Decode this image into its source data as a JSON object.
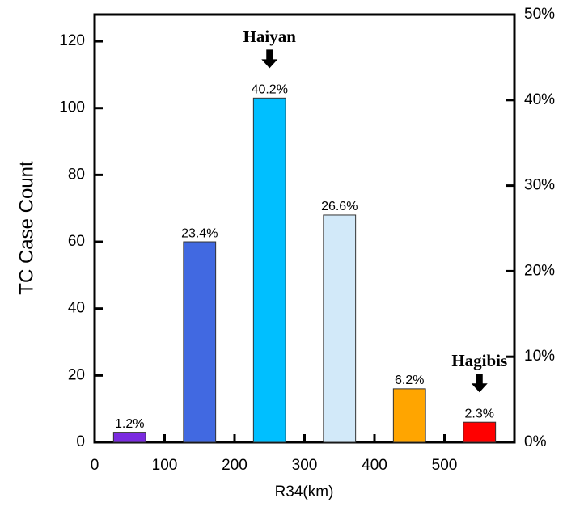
{
  "chart_data": {
    "type": "bar",
    "x": [
      50,
      150,
      250,
      350,
      450,
      550
    ],
    "values": [
      3,
      60,
      103,
      68,
      16,
      6
    ],
    "percent_labels": [
      "1.2%",
      "23.4%",
      "40.2%",
      "26.6%",
      "6.2%",
      "2.3%"
    ],
    "colors": [
      "#7b2be0",
      "#4169e1",
      "#00bfff",
      "#d2e9f9",
      "#ffa500",
      "#ff0000"
    ],
    "xlabel": "R34(km)",
    "ylabel": "TC Case Count",
    "xlim": [
      0,
      600
    ],
    "xticks": [
      0,
      100,
      200,
      300,
      400,
      500
    ],
    "ylim": [
      0,
      128
    ],
    "yticks": [
      0,
      20,
      40,
      60,
      80,
      100,
      120
    ],
    "y2lim": [
      0,
      50
    ],
    "y2ticks": [
      {
        "value": 0,
        "label": "0%"
      },
      {
        "value": 10,
        "label": "10%"
      },
      {
        "value": 20,
        "label": "20%"
      },
      {
        "value": 30,
        "label": "30%"
      },
      {
        "value": 40,
        "label": "40%"
      },
      {
        "value": 50,
        "label": "50%"
      }
    ],
    "annotations": [
      {
        "text": "Haiyan",
        "x": 250
      },
      {
        "text": "Hagibis",
        "x": 550
      }
    ]
  }
}
